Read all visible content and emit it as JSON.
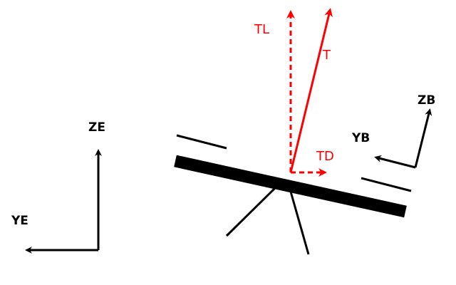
{
  "colors": {
    "ink": "#000000",
    "force": "#ff0000",
    "background": "#ffffff"
  },
  "labels": {
    "earth_z": "ZE",
    "earth_y": "YE",
    "body_z": "ZB",
    "body_y": "YB",
    "lift": "TL",
    "thrust": "T",
    "drag": "TD"
  }
}
